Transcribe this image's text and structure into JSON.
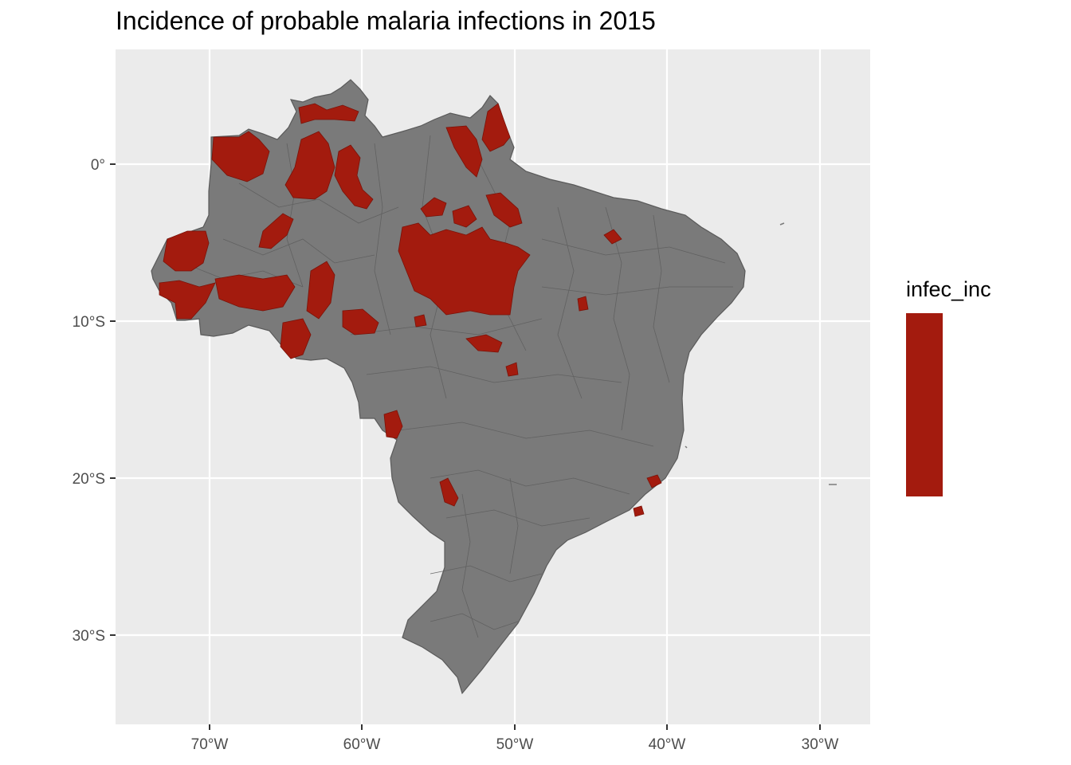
{
  "title": "Incidence of probable malaria infections in 2015",
  "colors": {
    "panel_bg": "#ebebeb",
    "grid": "#ffffff",
    "land_fill": "#7a7a7a",
    "border": "#5a5a5a",
    "high_incidence": "#a31b0e"
  },
  "axes": {
    "x_ticks": [
      "70°W",
      "60°W",
      "50°W",
      "40°W",
      "30°W"
    ],
    "y_ticks": [
      "0°",
      "10°S",
      "20°S",
      "30°S"
    ]
  },
  "legend": {
    "title": "infec_inc",
    "color": "#a31b0e"
  },
  "map": {
    "region": "Brazil municipalities",
    "high_incidence_areas": [
      "western Amazonas",
      "northern Amazonas / Roraima",
      "Amapá",
      "central Pará",
      "Rondônia",
      "Acre",
      "northern Mato Grosso"
    ]
  }
}
